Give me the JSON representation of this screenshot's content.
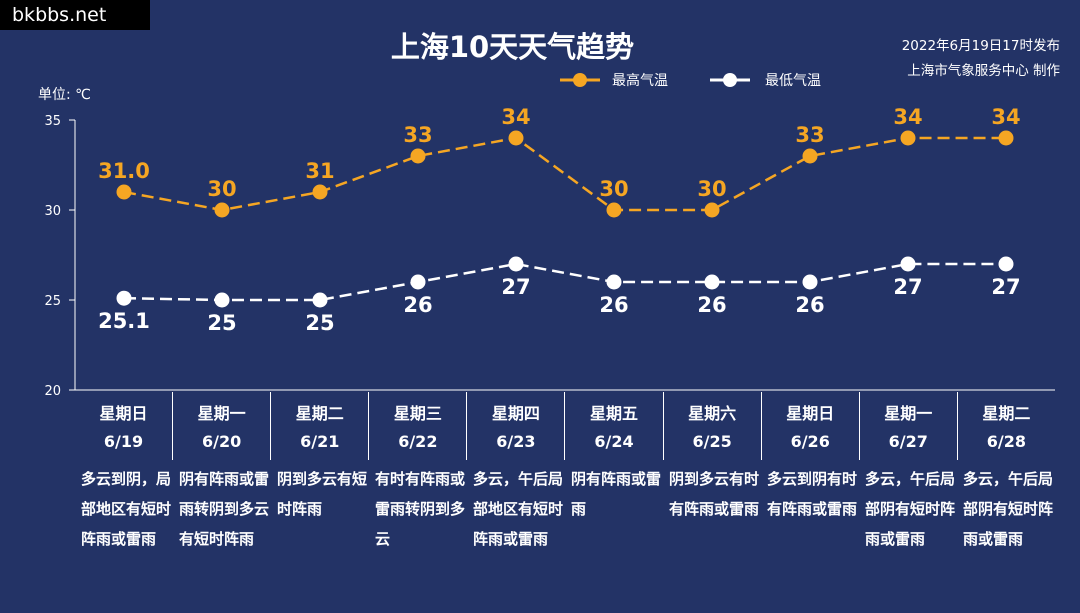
{
  "watermark": "bkbbs.net",
  "title": "上海10天天气趋势",
  "publish": {
    "line1": "2022年6月19日17时发布",
    "line2": "上海市气象服务中心 制作"
  },
  "unit_label": "单位: ℃",
  "colors": {
    "background": "#233366",
    "high": "#f5a623",
    "low": "#ffffff"
  },
  "chart_data": {
    "type": "line",
    "title": "上海10天天气趋势",
    "ylabel": "单位: ℃",
    "ylim": [
      20,
      35
    ],
    "yticks": [
      20,
      25,
      30,
      35
    ],
    "legend_position": "top-right",
    "categories": [
      "6/19",
      "6/20",
      "6/21",
      "6/22",
      "6/23",
      "6/24",
      "6/25",
      "6/26",
      "6/27",
      "6/28"
    ],
    "series": [
      {
        "name": "最高气温",
        "color": "#f5a623",
        "values": [
          31.0,
          30,
          31,
          33,
          34,
          30,
          30,
          33,
          34,
          34
        ],
        "labels": [
          "31.0",
          "30",
          "31",
          "33",
          "34",
          "30",
          "30",
          "33",
          "34",
          "34"
        ]
      },
      {
        "name": "最低气温",
        "color": "#ffffff",
        "values": [
          25.1,
          25,
          25,
          26,
          27,
          26,
          26,
          26,
          27,
          27
        ],
        "labels": [
          "25.1",
          "25",
          "25",
          "26",
          "27",
          "26",
          "26",
          "26",
          "27",
          "27"
        ]
      }
    ]
  },
  "days": [
    {
      "weekday": "星期日",
      "date": "6/19",
      "weather": "多云到阴，局部地区有短时阵雨或雷雨"
    },
    {
      "weekday": "星期一",
      "date": "6/20",
      "weather": "阴有阵雨或雷雨转阴到多云有短时阵雨"
    },
    {
      "weekday": "星期二",
      "date": "6/21",
      "weather": "阴到多云有短时阵雨"
    },
    {
      "weekday": "星期三",
      "date": "6/22",
      "weather": "有时有阵雨或雷雨转阴到多云"
    },
    {
      "weekday": "星期四",
      "date": "6/23",
      "weather": "多云，午后局部地区有短时阵雨或雷雨"
    },
    {
      "weekday": "星期五",
      "date": "6/24",
      "weather": "阴有阵雨或雷雨"
    },
    {
      "weekday": "星期六",
      "date": "6/25",
      "weather": "阴到多云有时有阵雨或雷雨"
    },
    {
      "weekday": "星期日",
      "date": "6/26",
      "weather": "多云到阴有时有阵雨或雷雨"
    },
    {
      "weekday": "星期一",
      "date": "6/27",
      "weather": "多云，午后局部阴有短时阵雨或雷雨"
    },
    {
      "weekday": "星期二",
      "date": "6/28",
      "weather": "多云，午后局部阴有短时阵雨或雷雨"
    }
  ]
}
